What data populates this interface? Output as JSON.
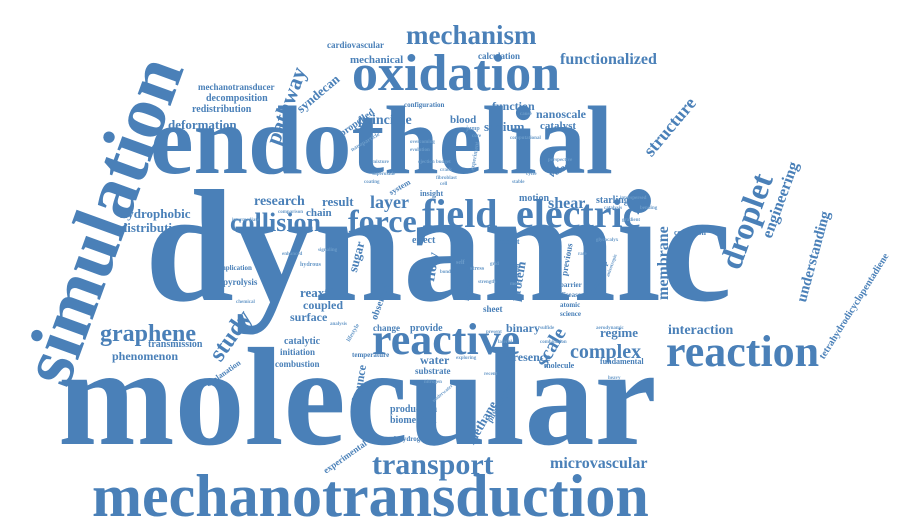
{
  "colors": {
    "primary": "#4a80b8",
    "dark": "#2f6aa6",
    "light": "#6b9bc9",
    "background": "#ffffff"
  },
  "words": {
    "molecular": "molecular",
    "dynamic": "dynamic",
    "endothelial": "endothelial",
    "mechanotransduction": "mechanotransduction",
    "simulation": "simulation",
    "oxidation": "oxidation",
    "reactive": "reactive",
    "reaction": "reaction",
    "field": "field",
    "electric": "electric",
    "force": "force",
    "transport": "transport",
    "mechanism": "mechanism",
    "collision": "collision",
    "droplet": "droplet",
    "graphene": "graphene",
    "study": "study",
    "pathway": "pathway",
    "functionalized": "functionalized",
    "membrane": "membrane",
    "complex": "complex",
    "scale": "scale",
    "structure": "structure",
    "engineering": "engineering",
    "understanding": "understanding",
    "interaction": "interaction",
    "microvascular": "microvascular",
    "shear": "shear",
    "layer": "layer",
    "flow": "flow",
    "protein": "protein",
    "sodium": "sodium",
    "principle": "principle",
    "nanoscale": "nanoscale",
    "catalyst": "catalyst",
    "function": "function",
    "blood": "blood",
    "research": "research",
    "result": "result",
    "chain": "chain",
    "hydrophobic": "hydrophobic",
    "distribution": "distribution",
    "deformation": "deformation",
    "redistribution": "redistribution",
    "decomposition": "decomposition",
    "mechanotransducer": "mechanotransducer",
    "syndecan": "syndecan",
    "mechanical": "mechanical",
    "cardiovascular": "cardiovascular",
    "calculation": "calculation",
    "propelled": "propelled",
    "configuration": "configuration",
    "velocity": "velocity",
    "motion": "motion",
    "starling": "starling",
    "condition": "condition",
    "tetrahydrodicyclopentadiene": "tetrahydrodicyclopentadiene",
    "regime": "regime",
    "fundamental": "fundamental",
    "presence": "presence",
    "molecule": "molecule",
    "binary": "binary",
    "water": "water",
    "substrate": "substrate",
    "provide": "provide",
    "change": "change",
    "bounce": "bounce",
    "methane": "methane",
    "physiological": "physiological",
    "production": "production",
    "biomedical": "biomedical",
    "dehydrogenation": "dehydrogenation",
    "experimental": "experimental",
    "phenomenon": "phenomenon",
    "transmission": "transmission",
    "catalytic": "catalytic",
    "initiation": "initiation",
    "combustion": "combustion",
    "explanation": "explanation",
    "reaxff": "reaxff",
    "coupled": "coupled",
    "surface": "surface",
    "sugar": "sugar",
    "pyrolysis": "pyrolysis",
    "implication": "implication",
    "effect": "effect",
    "impact": "impact",
    "system": "system",
    "insight": "insight",
    "energy": "energy",
    "electron": "electron",
    "sheet": "sheet",
    "intake": "intake",
    "observed": "observed",
    "previous": "previous",
    "barrier": "barrier",
    "disease": "disease",
    "relationship": "relationship",
    "temperature": "temperature",
    "jump": "jump",
    "self": "self",
    "present": "present",
    "sulfide": "sulfide",
    "atomic": "atomic",
    "science": "science",
    "computational": "computational",
    "experiment": "experiment",
    "hydrous": "hydrous",
    "lifestyle": "lifestyle",
    "combination": "combination",
    "nanoparticle": "nanoparticle",
    "ejection": "ejection",
    "crack": "crack",
    "underwater": "underwater",
    "fibroblast": "fibroblast",
    "evolution": "evolution",
    "budget": "budget",
    "perspective": "perspective",
    "intermediate": "intermediate",
    "catalysis": "catalysis",
    "interspersed": "interspersed",
    "glycocalyx": "glycocalyx",
    "comparison": "comparison",
    "overcoming": "overcoming",
    "aerodynamic": "aerodynamic",
    "lateral": "lateral",
    "bond": "bond",
    "stress": "stress",
    "strength": "strength",
    "heavy": "heavy",
    "exploring": "exploring",
    "mixture": "mixture",
    "superoxide": "superoxide",
    "chemical": "chemical",
    "signaling": "signaling",
    "enhanced": "enhanced",
    "analysis": "analysis",
    "anisotropic": "anisotropic",
    "bending": "bending",
    "coating": "coating",
    "cell": "cell",
    "cycle": "cycle",
    "stable": "stable",
    "grid": "grid",
    "gradient": "gradient",
    "mode": "mode",
    "nitrogen": "nitrogen",
    "recent": "recent",
    "rate": "rate",
    "core": "core",
    "cause": "cause"
  }
}
